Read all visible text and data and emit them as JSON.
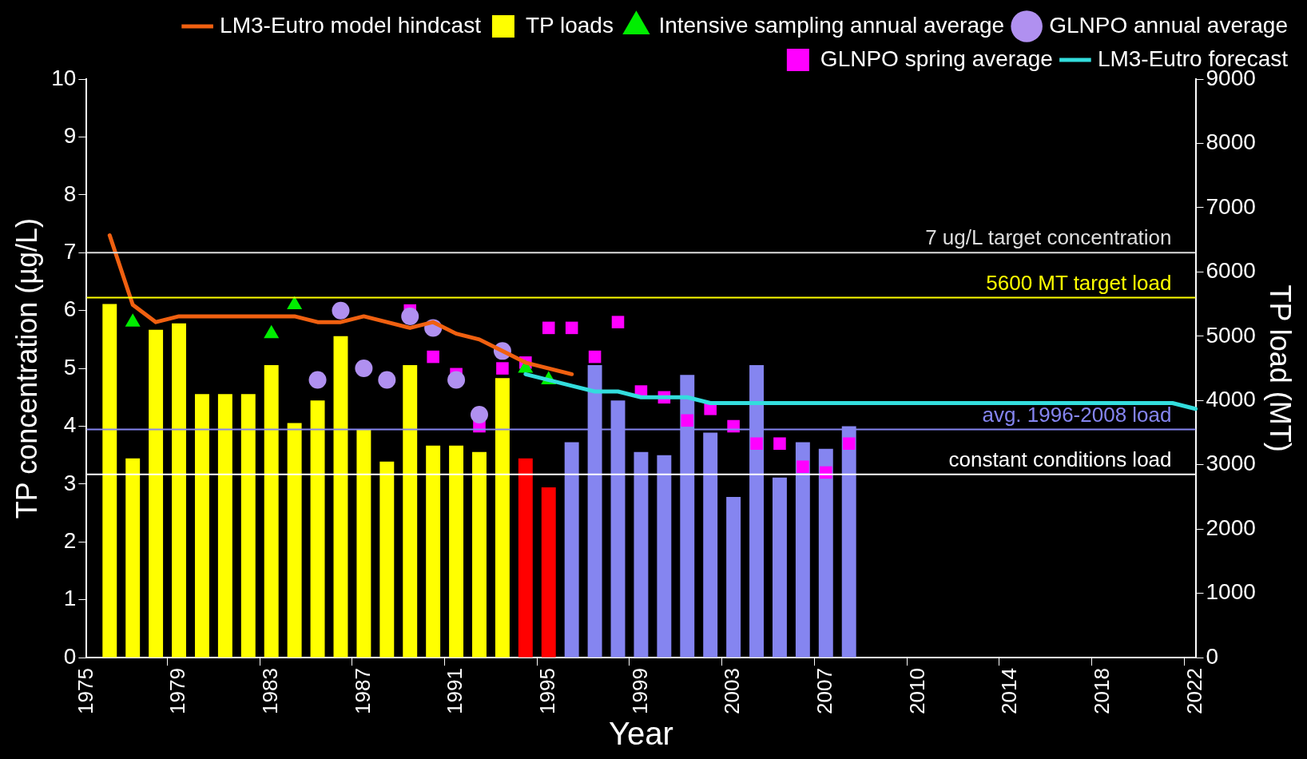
{
  "chart_data": {
    "type": "bar",
    "xlabel": "Year",
    "ylabel": "TP concentration (µg/L)",
    "y2label": "TP load (MT)",
    "categories": [
      "1975",
      null,
      null,
      null,
      "1979",
      null,
      null,
      null,
      "1983",
      null,
      null,
      null,
      "1987",
      null,
      null,
      null,
      "1991",
      null,
      null,
      null,
      "1995",
      null,
      null,
      null,
      "1999",
      null,
      null,
      null,
      "2003",
      null,
      null,
      null,
      "2007",
      null,
      null,
      null,
      "2010",
      null,
      null,
      null,
      "2014",
      null,
      null,
      null,
      "2018",
      null,
      null,
      null,
      "2022"
    ],
    "ylim": [
      0,
      10
    ],
    "yticks": [
      0,
      1,
      2,
      3,
      4,
      5,
      6,
      7,
      8,
      9,
      10
    ],
    "y2lim": [
      0,
      9000
    ],
    "y2ticks": [
      0,
      1000,
      2000,
      3000,
      4000,
      5000,
      6000,
      7000,
      8000,
      9000
    ],
    "grid": false,
    "legend": "top right",
    "series": [
      {
        "name": "LM3-Eutro model hindcast",
        "type": "line",
        "color": "#f06010",
        "marker": "none",
        "values": [
          null,
          7.3,
          6.1,
          5.8,
          5.9,
          5.9,
          5.9,
          5.9,
          5.9,
          5.9,
          5.8,
          5.8,
          5.9,
          5.8,
          5.7,
          5.8,
          5.6,
          5.5,
          5.3,
          5.1,
          5.0,
          4.9,
          null,
          null,
          null,
          null,
          null,
          null,
          null,
          null,
          null,
          null,
          null,
          null,
          null,
          null,
          null,
          null,
          null,
          null,
          null,
          null,
          null,
          null,
          null,
          null,
          null,
          null,
          null
        ]
      },
      {
        "name": "TP loads",
        "axis": "y2",
        "values": [
          null,
          5500,
          3100,
          5100,
          5200,
          4100,
          4100,
          4100,
          4550,
          3650,
          4000,
          5000,
          3550,
          3050,
          4550,
          3300,
          3300,
          3200,
          4350,
          3100,
          2650,
          3350,
          4550,
          4000,
          3200,
          3150,
          4400,
          3500,
          2500,
          4550,
          2800,
          3350,
          3250,
          3600,
          null,
          null,
          null,
          null,
          null,
          null,
          null,
          null,
          null,
          null,
          null,
          null,
          null,
          null,
          null
        ],
        "colors": [
          null,
          "#ffff00",
          "#ffff00",
          "#ffff00",
          "#ffff00",
          "#ffff00",
          "#ffff00",
          "#ffff00",
          "#ffff00",
          "#ffff00",
          "#ffff00",
          "#ffff00",
          "#ffff00",
          "#ffff00",
          "#ffff00",
          "#ffff00",
          "#ffff00",
          "#ffff00",
          "#ffff00",
          "#ff0000",
          "#ff0000",
          "#8585f0",
          "#8585f0",
          "#8585f0",
          "#8585f0",
          "#8585f0",
          "#8585f0",
          "#8585f0",
          "#8585f0",
          "#8585f0",
          "#8585f0",
          "#8585f0",
          "#8585f0",
          "#8585f0",
          null,
          null,
          null,
          null,
          null,
          null,
          null,
          null,
          null,
          null,
          null,
          null,
          null,
          null,
          null
        ]
      },
      {
        "name": "Intensive sampling annual average",
        "type": "scatter",
        "color": "#00ee00",
        "marker": "triangle",
        "values": [
          null,
          null,
          5.8,
          null,
          null,
          null,
          null,
          null,
          5.6,
          6.1,
          null,
          null,
          null,
          null,
          null,
          null,
          null,
          null,
          null,
          5.0,
          4.8,
          null,
          null,
          null,
          null,
          null,
          null,
          null,
          null,
          null,
          null,
          null,
          null,
          null,
          null,
          null,
          null,
          null,
          null,
          null,
          null,
          null,
          null,
          null,
          null,
          null,
          null,
          null,
          null
        ]
      },
      {
        "name": "GLNPO annual average",
        "type": "scatter",
        "color": "#b090f0",
        "marker": "circle",
        "values": [
          null,
          null,
          null,
          null,
          null,
          null,
          null,
          null,
          null,
          null,
          4.8,
          6.0,
          5.0,
          4.8,
          5.9,
          5.7,
          4.8,
          4.2,
          5.3,
          null,
          null,
          null,
          null,
          null,
          null,
          null,
          null,
          null,
          null,
          null,
          null,
          null,
          null,
          null,
          null,
          null,
          null,
          null,
          null,
          null,
          null,
          null,
          null,
          null,
          null,
          null,
          null,
          null,
          null
        ]
      },
      {
        "name": "GLNPO spring average",
        "type": "scatter",
        "color": "#ff00ff",
        "marker": "square",
        "values": [
          null,
          null,
          null,
          null,
          null,
          null,
          null,
          null,
          null,
          null,
          null,
          null,
          null,
          null,
          6.0,
          5.2,
          4.9,
          4.0,
          5.0,
          5.1,
          5.7,
          5.7,
          5.2,
          5.8,
          4.6,
          4.5,
          4.1,
          4.3,
          4.0,
          3.7,
          3.7,
          3.3,
          3.2,
          3.7,
          null,
          null,
          null,
          null,
          null,
          null,
          null,
          null,
          null,
          null,
          null,
          null,
          null,
          null,
          null
        ]
      },
      {
        "name": "LM3-Eutro forecast",
        "type": "line",
        "color": "#33dddd",
        "marker": "none",
        "values": [
          null,
          null,
          null,
          null,
          null,
          null,
          null,
          null,
          null,
          null,
          null,
          null,
          null,
          null,
          null,
          null,
          null,
          null,
          null,
          4.9,
          4.8,
          4.7,
          4.6,
          4.6,
          4.5,
          4.5,
          4.5,
          4.4,
          4.4,
          4.4,
          4.4,
          4.4,
          4.4,
          4.4,
          4.4,
          4.4,
          4.4,
          4.4,
          4.4,
          4.4,
          4.4,
          4.4,
          4.4,
          4.4,
          4.4,
          4.4,
          4.4,
          4.4,
          4.3
        ]
      }
    ],
    "ref_lines": [
      {
        "axis": "y",
        "value": 7,
        "label": "7 ug/L target concentration",
        "color": "#dddddd"
      },
      {
        "axis": "y2",
        "value": 5600,
        "label": "5600 MT target load",
        "color": "#ffff00"
      },
      {
        "axis": "y2",
        "value": 3550,
        "label": "avg. 1996-2008 load",
        "color": "#8585f0"
      },
      {
        "axis": "y2",
        "value": 2850,
        "label": "constant conditions load",
        "color": "#ffffff"
      }
    ]
  }
}
